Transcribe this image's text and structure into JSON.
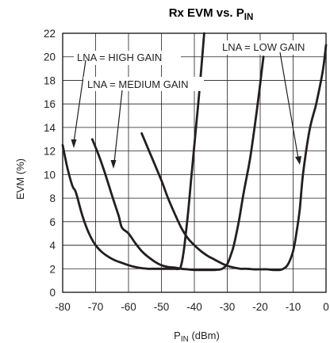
{
  "chart_data": {
    "type": "line",
    "title": "Rx EVM vs. P",
    "title_subscript": "IN",
    "xlabel": "P",
    "xlabel_subscript": "IN",
    "xlabel_unit": " (dBm)",
    "ylabel": "EVM (%)",
    "xlim": [
      -80,
      0
    ],
    "ylim": [
      0,
      22
    ],
    "xticks": [
      -80,
      -70,
      -60,
      -50,
      -40,
      -30,
      -20,
      -10,
      0
    ],
    "yticks": [
      0,
      2,
      4,
      6,
      8,
      10,
      12,
      14,
      16,
      18,
      20,
      22
    ],
    "grid": true,
    "series": [
      {
        "name": "LNA = HIGH GAIN",
        "x": [
          -80,
          -78.5,
          -77,
          -76,
          -74,
          -72,
          -70,
          -68,
          -66,
          -64,
          -62,
          -60,
          -58,
          -56,
          -54,
          -52,
          -50,
          -48,
          -46,
          -44.5,
          -44,
          -43.5,
          -43,
          -42,
          -41,
          -40,
          -38.5,
          -37
        ],
        "y": [
          12.5,
          10.5,
          9,
          8.5,
          6.5,
          5,
          4,
          3.4,
          3,
          2.7,
          2.5,
          2.3,
          2.15,
          2.05,
          2.0,
          2.0,
          2.0,
          2.0,
          2.0,
          2.0,
          2.3,
          3,
          4,
          6.5,
          9.5,
          12.5,
          17,
          22
        ]
      },
      {
        "name": "LNA = MEDIUM GAIN",
        "x": [
          -71,
          -69,
          -67,
          -65,
          -63,
          -62,
          -60,
          -58,
          -56,
          -54,
          -52,
          -50,
          -48,
          -46,
          -44,
          -42,
          -40,
          -38,
          -36,
          -34,
          -32,
          -31,
          -30,
          -29,
          -28,
          -26.5,
          -25,
          -23,
          -21,
          -19
        ],
        "y": [
          13,
          11.6,
          10,
          8.2,
          6.5,
          5.5,
          5,
          4.2,
          3.5,
          3,
          2.6,
          2.3,
          2.15,
          2.1,
          2.0,
          1.95,
          1.9,
          1.9,
          1.9,
          1.9,
          1.95,
          2.1,
          2.4,
          3.1,
          4,
          6,
          8.5,
          11.5,
          15.5,
          20
        ]
      },
      {
        "name": "LNA = LOW GAIN",
        "x": [
          -56,
          -53,
          -50,
          -48,
          -46,
          -44,
          -42,
          -40,
          -38,
          -36,
          -34,
          -32,
          -30,
          -28,
          -26,
          -24,
          -22,
          -20,
          -18,
          -16,
          -14,
          -13,
          -12,
          -11,
          -10,
          -9,
          -8,
          -7,
          -5,
          -3,
          -1,
          0
        ],
        "y": [
          13.5,
          11.5,
          9.5,
          8,
          6.7,
          5.5,
          4.6,
          4,
          3.5,
          3.1,
          2.8,
          2.5,
          2.25,
          2.1,
          2.0,
          2.0,
          1.95,
          1.95,
          1.95,
          1.9,
          1.9,
          2.0,
          2.2,
          2.7,
          3.5,
          5,
          7,
          10,
          13.8,
          16,
          18.8,
          21
        ]
      }
    ],
    "annotations": [
      {
        "text": "LNA = HIGH GAIN"
      },
      {
        "text": "LNA  = MEDIUM GAIN"
      },
      {
        "text": "LNA = LOW GAIN"
      }
    ]
  }
}
